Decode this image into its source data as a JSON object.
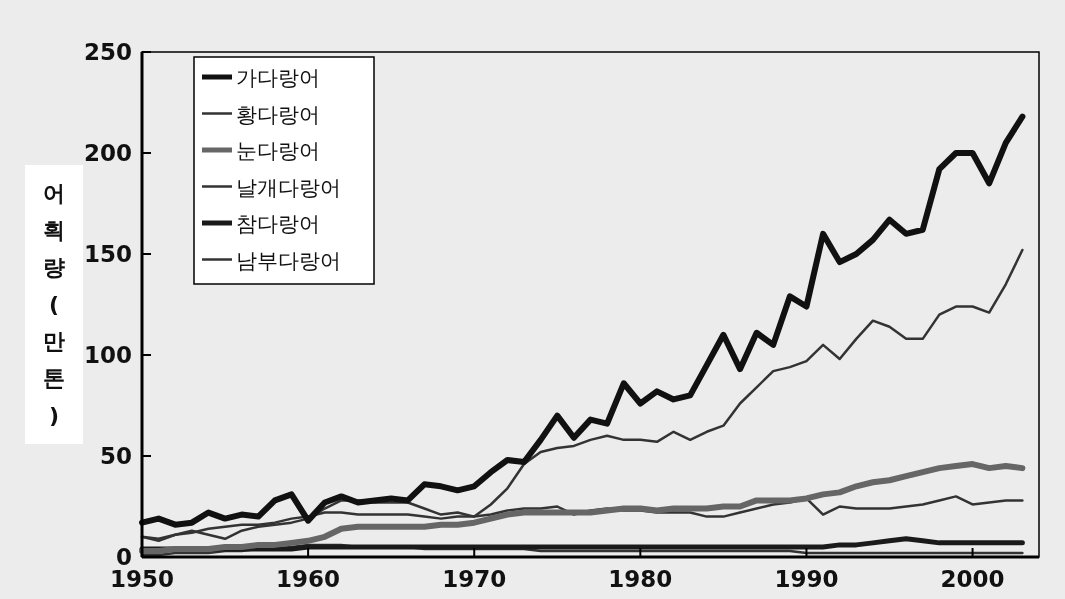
{
  "chart_data": {
    "type": "line",
    "ylabel": "어획량(만 톤)",
    "x": [
      1950,
      1951,
      1952,
      1953,
      1954,
      1955,
      1956,
      1957,
      1958,
      1959,
      1960,
      1961,
      1962,
      1963,
      1964,
      1965,
      1966,
      1967,
      1968,
      1969,
      1970,
      1971,
      1972,
      1973,
      1974,
      1975,
      1976,
      1977,
      1978,
      1979,
      1980,
      1981,
      1982,
      1983,
      1984,
      1985,
      1986,
      1987,
      1988,
      1989,
      1990,
      1991,
      1992,
      1993,
      1994,
      1995,
      1996,
      1997,
      1998,
      1999,
      2000,
      2001,
      2002,
      2003
    ],
    "xlim": [
      1950,
      2004
    ],
    "xticks": [
      1950,
      1960,
      1970,
      1980,
      1990,
      2000
    ],
    "ylim": [
      0,
      250
    ],
    "yticks": [
      0,
      50,
      100,
      150,
      200,
      250
    ],
    "grid": false,
    "legend": "top left",
    "marker": "none",
    "line_style": "solid",
    "series": [
      {
        "name": "가다랑어",
        "color": "#111111",
        "values": [
          17,
          19,
          16,
          17,
          22,
          19,
          21,
          20,
          28,
          31,
          18,
          27,
          30,
          27,
          28,
          29,
          28,
          36,
          35,
          33,
          35,
          42,
          48,
          47,
          58,
          70,
          59,
          68,
          66,
          86,
          76,
          82,
          78,
          80,
          95,
          110,
          93,
          111,
          105,
          129,
          124,
          160,
          146,
          150,
          157,
          167,
          160,
          162,
          192,
          200,
          200,
          185,
          205,
          218
        ]
      },
      {
        "name": "황다랑어",
        "color": "#333333",
        "values": [
          10,
          8,
          11,
          13,
          11,
          9,
          13,
          15,
          16,
          17,
          19,
          24,
          28,
          28,
          27,
          27,
          27,
          24,
          21,
          22,
          20,
          26,
          34,
          46,
          52,
          54,
          55,
          58,
          60,
          58,
          58,
          57,
          62,
          58,
          62,
          65,
          76,
          84,
          92,
          94,
          97,
          105,
          98,
          108,
          117,
          114,
          108,
          108,
          120,
          124,
          124,
          121,
          135,
          152
        ]
      },
      {
        "name": "눈다랑어",
        "color": "#666666",
        "values": [
          3,
          3,
          4,
          4,
          4,
          5,
          5,
          6,
          6,
          7,
          8,
          10,
          14,
          15,
          15,
          15,
          15,
          15,
          16,
          16,
          17,
          19,
          21,
          22,
          22,
          22,
          22,
          22,
          23,
          24,
          24,
          23,
          24,
          24,
          24,
          25,
          25,
          28,
          28,
          28,
          29,
          31,
          32,
          35,
          37,
          38,
          40,
          42,
          44,
          45,
          46,
          44,
          45,
          44
        ]
      },
      {
        "name": "날개다랑어",
        "color": "#333333",
        "values": [
          10,
          9,
          11,
          12,
          14,
          15,
          16,
          16,
          17,
          19,
          20,
          22,
          22,
          21,
          21,
          21,
          21,
          20,
          19,
          20,
          20,
          21,
          23,
          24,
          24,
          25,
          21,
          23,
          24,
          23,
          23,
          22,
          22,
          22,
          20,
          20,
          22,
          24,
          26,
          27,
          29,
          21,
          25,
          24,
          24,
          24,
          25,
          26,
          28,
          30,
          26,
          27,
          28,
          28
        ]
      },
      {
        "name": "참다랑어",
        "color": "#1a1a1a",
        "values": [
          4,
          4,
          4,
          4,
          4,
          4,
          4,
          4,
          4,
          4,
          5,
          5,
          5,
          5,
          5,
          5,
          5,
          5,
          5,
          5,
          5,
          5,
          5,
          5,
          5,
          5,
          5,
          5,
          5,
          5,
          5,
          5,
          5,
          5,
          5,
          5,
          5,
          5,
          5,
          5,
          5,
          5,
          6,
          6,
          7,
          8,
          9,
          8,
          7,
          7,
          7,
          7,
          7,
          7
        ]
      },
      {
        "name": "남부다랑어",
        "color": "#333333",
        "values": [
          1,
          1,
          2,
          2,
          2,
          3,
          3,
          4,
          4,
          5,
          6,
          6,
          6,
          5,
          5,
          5,
          5,
          4,
          4,
          4,
          4,
          4,
          4,
          4,
          3,
          3,
          3,
          3,
          3,
          3,
          3,
          3,
          3,
          3,
          3,
          3,
          3,
          3,
          3,
          3,
          2,
          2,
          2,
          2,
          2,
          2,
          2,
          2,
          2,
          2,
          2,
          2,
          2,
          2
        ]
      }
    ]
  }
}
